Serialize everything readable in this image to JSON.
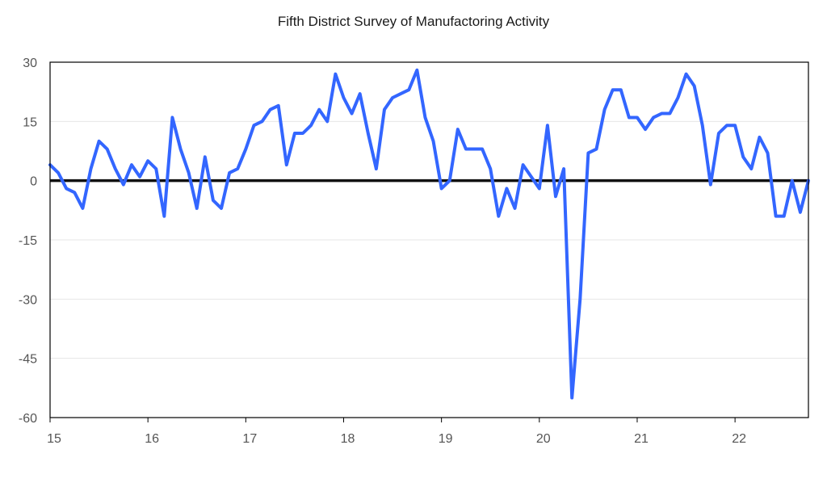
{
  "chart_data": {
    "type": "line",
    "title": "Fifth District Survey of Manufactoring Activity",
    "xlabel": "",
    "ylabel": "",
    "ylim": [
      -60,
      30
    ],
    "xlim": [
      2015,
      2022.75
    ],
    "y_ticks": [
      30,
      15,
      0,
      -15,
      -30,
      -45,
      -60
    ],
    "y_tick_labels": [
      "30",
      "15",
      "0",
      "-15",
      "-30",
      "-45",
      "-60"
    ],
    "x_ticks": [
      2015,
      2016,
      2017,
      2018,
      2019,
      2020,
      2021,
      2022
    ],
    "x_tick_labels": [
      "15",
      "16",
      "17",
      "18",
      "19",
      "20",
      "21",
      "22"
    ],
    "grid": "horizontal",
    "zero_line": true,
    "colors": {
      "series": "#3366ff",
      "zero_line": "#111111",
      "grid": "#e6e6e6",
      "frame": "#000000"
    },
    "series": [
      {
        "x_start": "2015-01",
        "frequency": "monthly",
        "values": [
          4,
          2,
          -2,
          -3,
          -7,
          3,
          10,
          8,
          3,
          -1,
          4,
          1,
          5,
          3,
          -9,
          16,
          8,
          2,
          -7,
          6,
          -5,
          -7,
          2,
          3,
          8,
          14,
          15,
          18,
          19,
          4,
          12,
          12,
          14,
          18,
          15,
          27,
          21,
          17,
          22,
          12,
          3,
          18,
          21,
          22,
          23,
          28,
          16,
          10,
          -2,
          0,
          13,
          8,
          8,
          8,
          3,
          -9,
          -2,
          -7,
          4,
          1,
          -2,
          14,
          -4,
          3,
          -55,
          -30,
          7,
          8,
          18,
          23,
          23,
          16,
          16,
          13,
          16,
          17,
          17,
          21,
          27,
          24,
          14,
          -1,
          12,
          14,
          14,
          6,
          3,
          11,
          7,
          -9,
          -9,
          0,
          -8,
          0
        ]
      }
    ]
  }
}
